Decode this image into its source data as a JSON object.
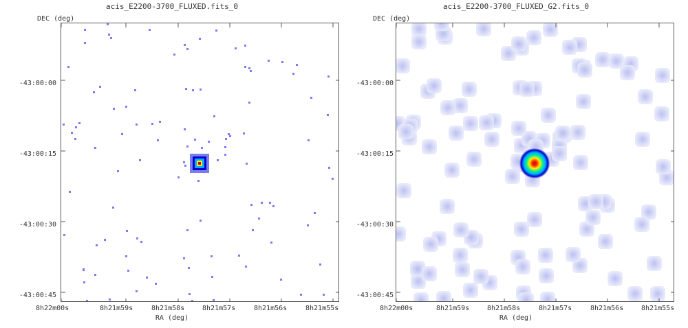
{
  "panels": [
    {
      "title": "acis_E2200-3700_FLUXED.fits_0",
      "ylabel": "DEC (deg)",
      "xlabel": "RA (deg)",
      "yticks": [
        "-43:00:00",
        "-43:00:15",
        "-43:00:30",
        "-43:00:45"
      ],
      "xticks": [
        "8h22m00s",
        "8h21m59s",
        "8h21m58s",
        "8h21m57s",
        "8h21m56s",
        "8h21m55s"
      ],
      "style": "sparse"
    },
    {
      "title": "acis_E2200-3700_FLUXED_G2.fits_0",
      "ylabel": "DEC (deg)",
      "xlabel": "RA (deg)",
      "yticks": [
        "-43:00:00",
        "-43:00:15",
        "-43:00:30",
        "-43:00:45"
      ],
      "xticks": [
        "8h22m00s",
        "8h21m59s",
        "8h21m58s",
        "8h21m57s",
        "8h21m56s",
        "8h21m55s"
      ],
      "style": "smoothed"
    }
  ],
  "colors": {
    "pixel": "#7b7cf2",
    "smooth": "#c7c9f0",
    "source_core": "#cc0000",
    "source_mid": "#ffee00",
    "source_outer": "#00aaff",
    "source_edge": "#0000cc"
  }
}
